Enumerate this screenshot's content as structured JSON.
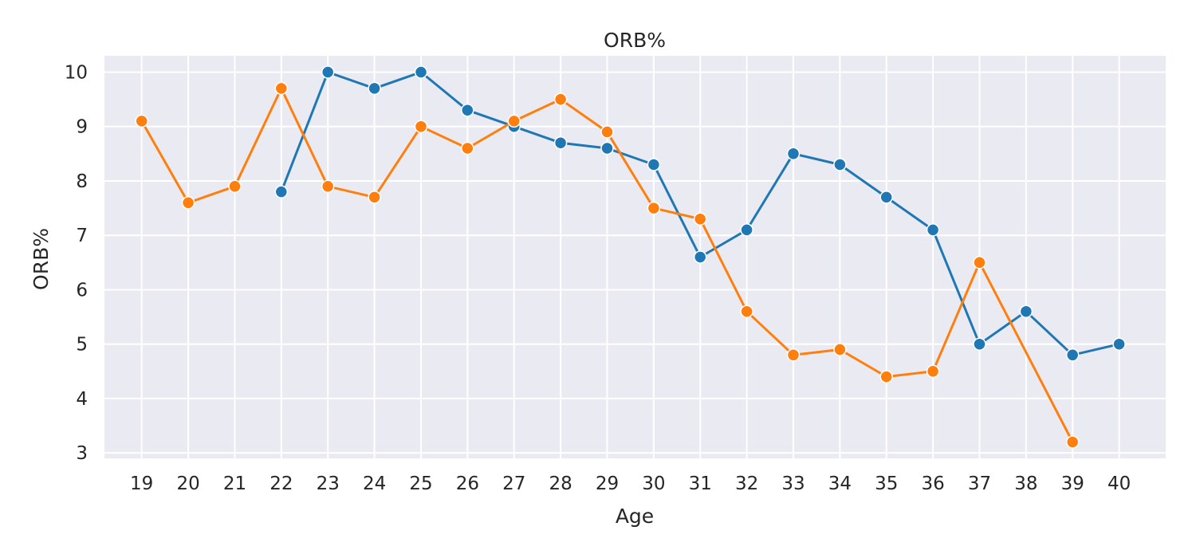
{
  "chart_data": {
    "type": "line",
    "title": "ORB%",
    "xlabel": "Age",
    "ylabel": "ORB%",
    "x": [
      19,
      20,
      21,
      22,
      23,
      24,
      25,
      26,
      27,
      28,
      29,
      30,
      31,
      32,
      33,
      34,
      35,
      36,
      37,
      38,
      39,
      40
    ],
    "xticks": [
      "19",
      "20",
      "21",
      "22",
      "23",
      "24",
      "25",
      "26",
      "27",
      "28",
      "29",
      "30",
      "31",
      "32",
      "33",
      "34",
      "35",
      "36",
      "37",
      "38",
      "39",
      "40"
    ],
    "yticks": [
      "3",
      "4",
      "5",
      "6",
      "7",
      "8",
      "9",
      "10"
    ],
    "xlim": [
      18.2,
      41.0
    ],
    "ylim": [
      2.9,
      10.3
    ],
    "grid": true,
    "legend": "none",
    "series": [
      {
        "color": "#1f77b4",
        "points": [
          [
            22,
            7.8
          ],
          [
            23,
            10.0
          ],
          [
            24,
            9.7
          ],
          [
            25,
            10.0
          ],
          [
            26,
            9.3
          ],
          [
            27,
            9.0
          ],
          [
            28,
            8.7
          ],
          [
            29,
            8.6
          ],
          [
            30,
            8.3
          ],
          [
            31,
            6.6
          ],
          [
            32,
            7.1
          ],
          [
            33,
            8.5
          ],
          [
            34,
            8.3
          ],
          [
            35,
            7.7
          ],
          [
            36,
            7.1
          ],
          [
            37,
            5.0
          ],
          [
            38,
            5.6
          ],
          [
            39,
            4.8
          ],
          [
            40,
            5.0
          ]
        ]
      },
      {
        "color": "#ff7f0e",
        "points": [
          [
            19,
            9.1
          ],
          [
            20,
            7.6
          ],
          [
            21,
            7.9
          ],
          [
            22,
            9.7
          ],
          [
            23,
            7.9
          ],
          [
            24,
            7.7
          ],
          [
            25,
            9.0
          ],
          [
            26,
            8.6
          ],
          [
            27,
            9.1
          ],
          [
            28,
            9.5
          ],
          [
            29,
            8.9
          ],
          [
            30,
            7.5
          ],
          [
            31,
            7.3
          ],
          [
            32,
            5.6
          ],
          [
            33,
            4.8
          ],
          [
            34,
            4.9
          ],
          [
            35,
            4.4
          ],
          [
            36,
            4.5
          ],
          [
            37,
            6.5
          ],
          [
            39,
            3.2
          ]
        ]
      }
    ]
  }
}
